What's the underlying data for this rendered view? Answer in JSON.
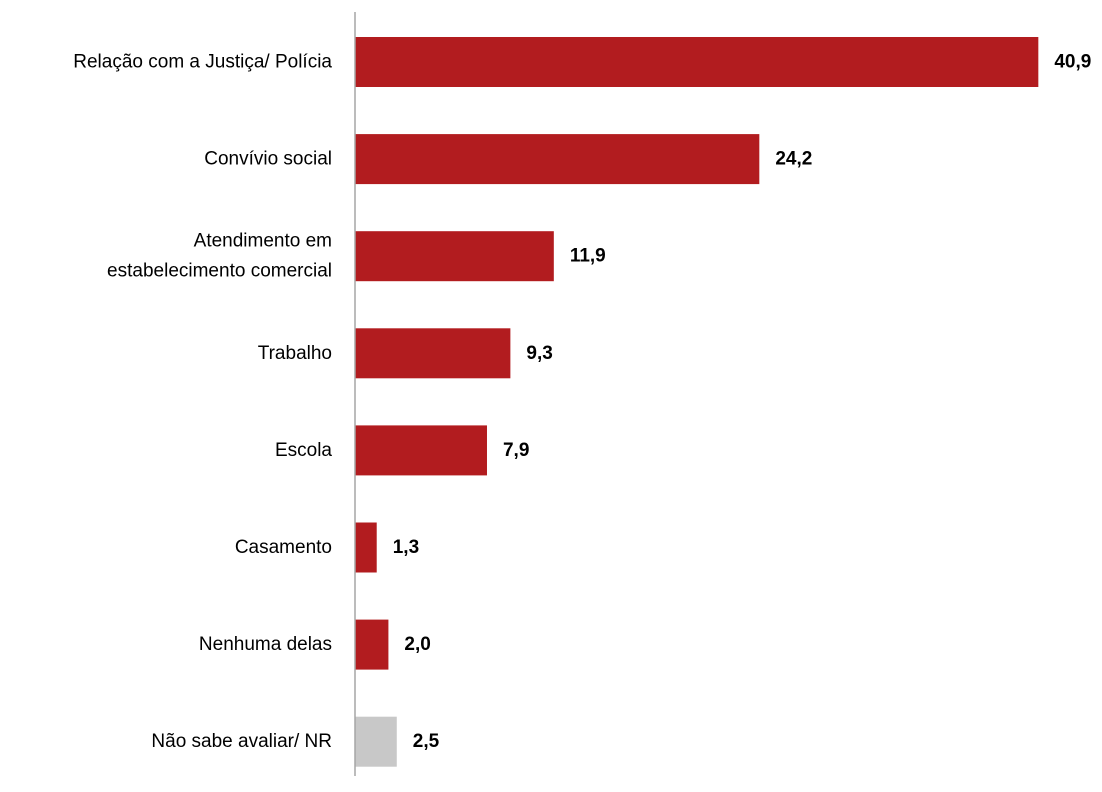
{
  "chart_data": {
    "type": "bar",
    "orientation": "horizontal",
    "title": "",
    "xlabel": "",
    "ylabel": "",
    "categories": [
      "Relação com a Justiça/ Polícia",
      "Convívio social",
      "Atendimento em estabelecimento comercial",
      "Trabalho",
      "Escola",
      "Casamento",
      "Nenhuma delas",
      "Não sabe avaliar/ NR"
    ],
    "category_lines": [
      [
        "Relação com a Justiça/ Polícia"
      ],
      [
        "Convívio social"
      ],
      [
        "Atendimento em",
        "estabelecimento comercial"
      ],
      [
        "Trabalho"
      ],
      [
        "Escola"
      ],
      [
        "Casamento"
      ],
      [
        "Nenhuma delas"
      ],
      [
        "Não sabe avaliar/ NR"
      ]
    ],
    "values": [
      40.9,
      24.2,
      11.9,
      9.3,
      7.9,
      1.3,
      2.0,
      2.5
    ],
    "value_labels": [
      "40,9",
      "24,2",
      "11,9",
      "9,3",
      "7,9",
      "1,3",
      "2,0",
      "2,5"
    ],
    "bar_colors": [
      "#b21c1f",
      "#b21c1f",
      "#b21c1f",
      "#b21c1f",
      "#b21c1f",
      "#b21c1f",
      "#b21c1f",
      "#c8c8c8"
    ],
    "xlim": [
      0,
      41
    ],
    "grid": false,
    "legend": "none"
  },
  "colors": {
    "accent": "#b21c1f",
    "neutral": "#c8c8c8",
    "axis": "#a6a6a6",
    "text": "#000000"
  }
}
